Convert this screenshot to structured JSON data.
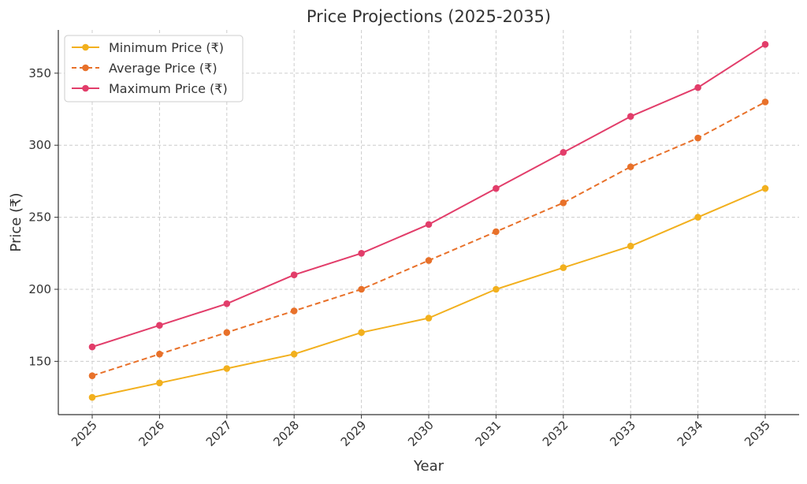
{
  "chart_data": {
    "type": "line",
    "title": "Price Projections (2025-2035)",
    "xlabel": "Year",
    "ylabel": "Price (₹)",
    "categories": [
      "2025",
      "2026",
      "2027",
      "2028",
      "2029",
      "2030",
      "2031",
      "2032",
      "2033",
      "2034",
      "2035"
    ],
    "ylim": [
      113,
      380
    ],
    "yticks": [
      150,
      200,
      250,
      300,
      350
    ],
    "grid": true,
    "legend_position": "top-left",
    "series": [
      {
        "name": "Minimum Price (₹)",
        "color": "#f2b01e",
        "dash": "solid",
        "values": [
          125,
          135,
          145,
          155,
          170,
          180,
          200,
          215,
          230,
          250,
          270
        ]
      },
      {
        "name": "Average Price (₹)",
        "color": "#e8712a",
        "dash": "dashed",
        "values": [
          140,
          155,
          170,
          185,
          200,
          220,
          240,
          260,
          285,
          305,
          330
        ]
      },
      {
        "name": "Maximum Price (₹)",
        "color": "#e23d6a",
        "dash": "solid",
        "values": [
          160,
          175,
          190,
          210,
          225,
          245,
          270,
          295,
          320,
          340,
          370
        ]
      }
    ]
  }
}
